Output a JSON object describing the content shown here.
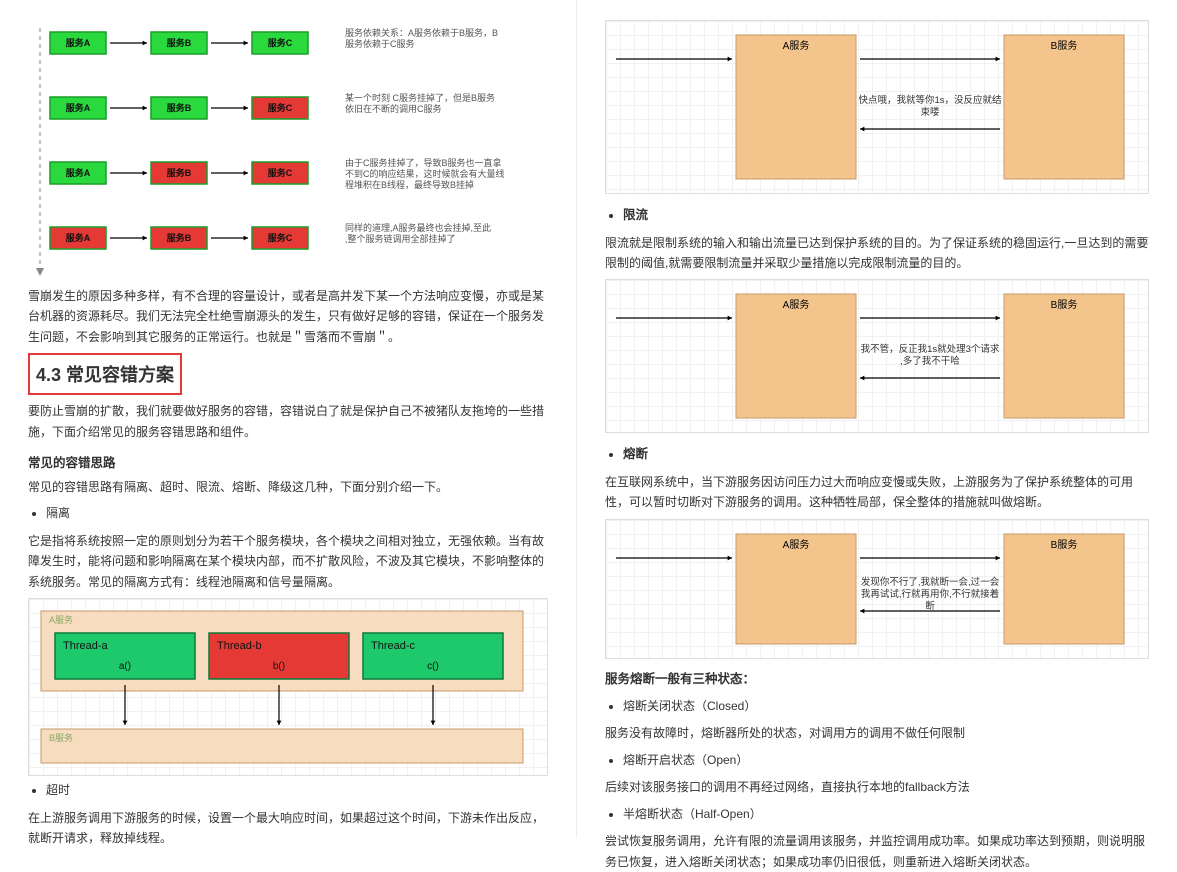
{
  "left": {
    "chain": {
      "rows": [
        {
          "colors": [
            "#29d93e",
            "#29d93e",
            "#29d93e"
          ],
          "labels": [
            "服务A",
            "服务B",
            "服务C"
          ],
          "desc": "服务依赖关系：\nA服务依赖于B服务，B服务依赖于C服务"
        },
        {
          "colors": [
            "#29d93e",
            "#29d93e",
            "#e53935"
          ],
          "labels": [
            "服务A",
            "服务B",
            "服务C"
          ],
          "desc": "某一个时刻 C服务挂掉了，但是B服务依旧在不断的调用C服务"
        },
        {
          "colors": [
            "#29d93e",
            "#e53935",
            "#e53935"
          ],
          "labels": [
            "服务A",
            "服务B",
            "服务C"
          ],
          "desc": "由于C服务挂掉了，导致B服务也一直拿不到C的响应结果，这时候就会有大量线程堆积在B线程，最终导致B挂掉"
        },
        {
          "colors": [
            "#e53935",
            "#e53935",
            "#e53935"
          ],
          "labels": [
            "服务A",
            "服务B",
            "服务C"
          ],
          "desc": "同样的道理,A服务最终也会挂掉,至此,整个服务链调用全部挂掉了"
        }
      ],
      "box_border": "#1a9c28",
      "arrow_color": "#000",
      "dash_color": "#888"
    },
    "p_after_chain": "雪崩发生的原因多种多样，有不合理的容量设计，或者是高并发下某一个方法响应变慢，亦或是某台机器的资源耗尽。我们无法完全杜绝雪崩源头的发生，只有做好足够的容错，保证在一个服务发生问题，不会影响到其它服务的正常运行。也就是＂雪落而不雪崩＂。",
    "sec_title": "4.3 常见容错方案",
    "p_intro": "要防止雪崩的扩散，我们就要做好服务的容错，容错说白了就是保护自己不被猪队友拖垮的一些措施，下面介绍常见的服务容错思路和组件。",
    "h_common": "常见的容错思路",
    "p_common": "常见的容错思路有隔离、超时、限流、熔断、降级这几种，下面分别介绍一下。",
    "bullet_iso": "隔离",
    "p_iso": "它是指将系统按照一定的原则划分为若干个服务模块，各个模块之间相对独立，无强依赖。当有故障发生时，能将问题和影响隔离在某个模块内部，而不扩散风险，不波及其它模块，不影响整体的系统服务。常见的隔离方式有：线程池隔离和信号量隔离。",
    "iso_diagram": {
      "a_label": "A服务",
      "b_label": "B服务",
      "threads": [
        {
          "name": "Thread-a",
          "fn": "a()",
          "color": "#1ec96b"
        },
        {
          "name": "Thread-b",
          "fn": "b()",
          "color": "#e53935"
        },
        {
          "name": "Thread-c",
          "fn": "c()",
          "color": "#1ec96b"
        }
      ],
      "box_fill": "#f8dcbf",
      "box_border": "#c49a6c"
    },
    "bullet_timeout": "超时",
    "p_timeout": "在上游服务调用下游服务的时候，设置一个最大响应时间，如果超过这个时间，下游未作出反应，就断开请求，释放掉线程。"
  },
  "right": {
    "svc_box": {
      "fill": "#f4c48d",
      "border": "#c49a6c",
      "a": "A服务",
      "b": "B服务"
    },
    "d1_text": "快点哦，我就等你1s，没反应就结束喽",
    "h_limit": "限流",
    "p_limit": "限流就是限制系统的输入和输出流量已达到保护系统的目的。为了保证系统的稳固运行,一旦达到的需要限制的阈值,就需要限制流量并采取少量措施以完成限制流量的目的。",
    "d2_text": "我不管，反正我1s就处理3个请求,多了我不干哈",
    "h_break": "熔断",
    "p_break": "在互联网系统中，当下游服务因访问压力过大而响应变慢或失败，上游服务为了保护系统整体的可用性，可以暂时切断对下游服务的调用。这种牺牲局部，保全整体的措施就叫做熔断。",
    "d3_text": "发现你不行了,我就断一会,过一会我再试试,行就再用你,不行就接着断",
    "h_states": "服务熔断一般有三种状态：",
    "s1": "熔断关闭状态（Closed）",
    "p_s1": "服务没有故障时，熔断器所处的状态，对调用方的调用不做任何限制",
    "s2": "熔断开启状态（Open）",
    "p_s2": "后续对该服务接口的调用不再经过网络，直接执行本地的fallback方法",
    "s3": "半熔断状态（Half-Open）",
    "p_s3": "尝试恢复服务调用，允许有限的流量调用该服务，并监控调用成功率。如果成功率达到预期，则说明服务已恢复，进入熔断关闭状态；如果成功率仍旧很低，则重新进入熔断关闭状态。"
  }
}
